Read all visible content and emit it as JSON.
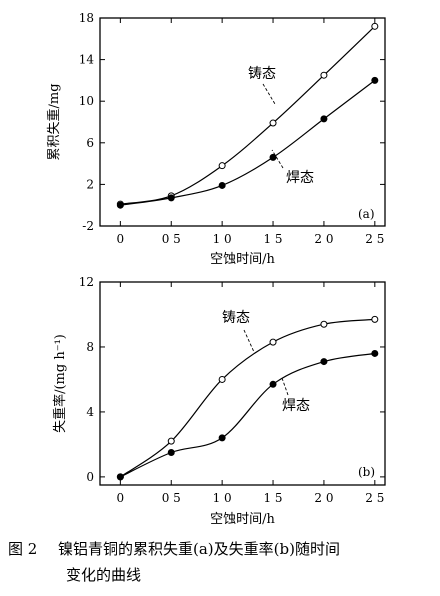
{
  "caption": {
    "number": "图 2",
    "text_line1": "镍铝青铜的累积失重(a)及失重率(b)随时间",
    "text_line2": "变化的曲线"
  },
  "chart_data": [
    {
      "type": "line",
      "panel_label": "(a)",
      "title": "",
      "xlabel": "空蚀时间/h",
      "ylabel": "累积失重/mg",
      "xlim": [
        -0.2,
        2.6
      ],
      "ylim": [
        -2,
        18
      ],
      "xticks": [
        0,
        0.5,
        1.0,
        1.5,
        2.0,
        2.5
      ],
      "xtick_labels": [
        "0",
        "0 5",
        "1 0",
        "1 5",
        "2 0",
        "2 5"
      ],
      "yticks": [
        -2,
        2,
        6,
        10,
        14,
        18
      ],
      "ytick_labels": [
        "-2",
        "2",
        "6",
        "10",
        "14",
        "18"
      ],
      "grid": false,
      "series": [
        {
          "name": "铸态",
          "marker": "open-circle",
          "x": [
            0,
            0.5,
            1.0,
            1.5,
            2.0,
            2.5
          ],
          "y": [
            0.1,
            0.9,
            3.8,
            7.9,
            12.5,
            17.2
          ]
        },
        {
          "name": "焊态",
          "marker": "filled-circle",
          "x": [
            0,
            0.5,
            1.0,
            1.5,
            2.0,
            2.5
          ],
          "y": [
            0.0,
            0.7,
            1.9,
            4.6,
            8.3,
            12.0
          ]
        }
      ]
    },
    {
      "type": "line",
      "panel_label": "(b)",
      "title": "",
      "xlabel": "空蚀时间/h",
      "ylabel": "失重率/(mg h⁻¹)",
      "xlim": [
        -0.2,
        2.6
      ],
      "ylim": [
        -0.5,
        12
      ],
      "xticks": [
        0,
        0.5,
        1.0,
        1.5,
        2.0,
        2.5
      ],
      "xtick_labels": [
        "0",
        "0 5",
        "1 0",
        "1 5",
        "2 0",
        "2 5"
      ],
      "yticks": [
        0,
        4,
        8,
        12
      ],
      "ytick_labels": [
        "0",
        "4",
        "8",
        "12"
      ],
      "grid": false,
      "series": [
        {
          "name": "铸态",
          "marker": "open-circle",
          "x": [
            0,
            0.5,
            1.0,
            1.5,
            2.0,
            2.5
          ],
          "y": [
            0.0,
            2.2,
            6.0,
            8.3,
            9.4,
            9.7
          ]
        },
        {
          "name": "焊态",
          "marker": "filled-circle",
          "x": [
            0,
            0.5,
            1.0,
            1.5,
            2.0,
            2.5
          ],
          "y": [
            0.0,
            1.5,
            2.4,
            5.7,
            7.1,
            7.6
          ]
        }
      ]
    }
  ]
}
